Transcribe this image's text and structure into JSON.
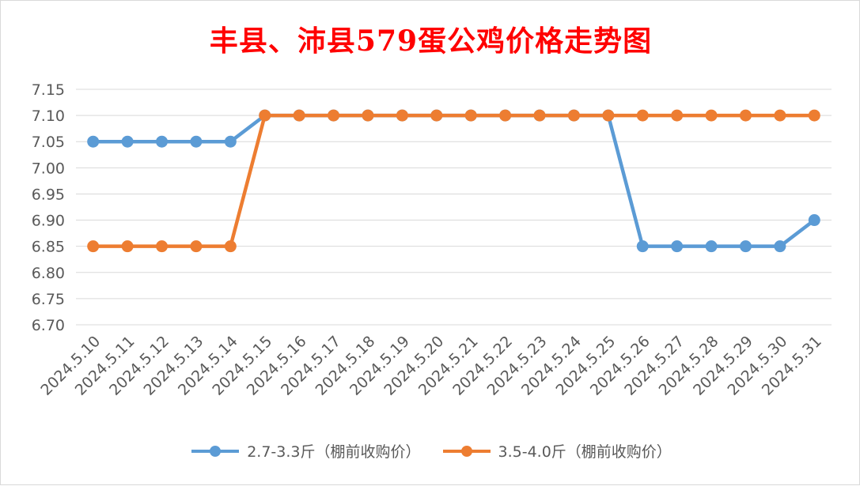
{
  "chart_data": {
    "type": "line",
    "title": "丰县、沛县579蛋公鸡价格走势图",
    "xlabel": "",
    "ylabel": "",
    "categories": [
      "2024.5.10",
      "2024.5.11",
      "2024.5.12",
      "2024.5.13",
      "2024.5.14",
      "2024.5.15",
      "2024.5.16",
      "2024.5.17",
      "2024.5.18",
      "2024.5.19",
      "2024.5.20",
      "2024.5.21",
      "2024.5.22",
      "2024.5.23",
      "2024.5.24",
      "2024.5.25",
      "2024.5.26",
      "2024.5.27",
      "2024.5.28",
      "2024.5.29",
      "2024.5.30",
      "2024.5.31"
    ],
    "yticks": [
      "6.70",
      "6.75",
      "6.80",
      "6.85",
      "6.90",
      "6.95",
      "7.00",
      "7.05",
      "7.10",
      "7.15"
    ],
    "ylim": [
      6.7,
      7.15
    ],
    "grid": true,
    "legend_position": "bottom",
    "series": [
      {
        "name": "2.7-3.3斤（棚前收购价）",
        "color": "#5b9bd5",
        "values": [
          7.05,
          7.05,
          7.05,
          7.05,
          7.05,
          7.1,
          7.1,
          7.1,
          7.1,
          7.1,
          7.1,
          7.1,
          7.1,
          7.1,
          7.1,
          7.1,
          6.85,
          6.85,
          6.85,
          6.85,
          6.85,
          6.9
        ]
      },
      {
        "name": "3.5-4.0斤（棚前收购价）",
        "color": "#ed7d31",
        "values": [
          6.85,
          6.85,
          6.85,
          6.85,
          6.85,
          7.1,
          7.1,
          7.1,
          7.1,
          7.1,
          7.1,
          7.1,
          7.1,
          7.1,
          7.1,
          7.1,
          7.1,
          7.1,
          7.1,
          7.1,
          7.1,
          7.1
        ]
      }
    ]
  }
}
